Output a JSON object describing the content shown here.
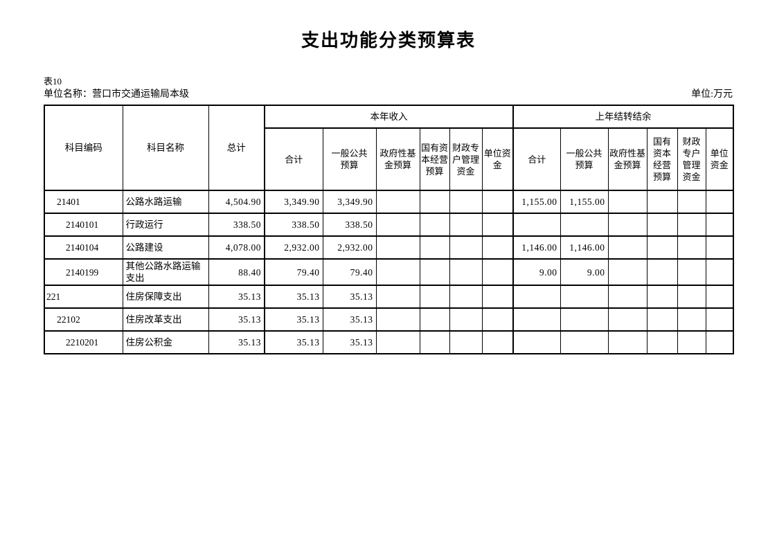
{
  "page": {
    "title": "支出功能分类预算表",
    "table_number": "表10",
    "unit_name": "单位名称：营口市交通运输局本级",
    "unit_of_measure": "单位:万元"
  },
  "table": {
    "header": {
      "subject_code": "科目编码",
      "subject_name": "科目名称",
      "grand_total": "总计",
      "groups": [
        {
          "label": "本年收入",
          "columns": [
            "合计",
            "一般公共预算",
            "政府性基金预算",
            "国有资本经营预算",
            "财政专户管理资金",
            "单位资金"
          ]
        },
        {
          "label": "上年结转结余",
          "columns": [
            "合计",
            "一般公共预算",
            "政府性基金预算",
            "国有资本经营预算",
            "财政专户管理资金",
            "单位资金"
          ]
        }
      ]
    },
    "rows": [
      {
        "code": "21401",
        "level": 2,
        "name": "公路水路运输",
        "total": "4,504.90",
        "current_year": [
          "3,349.90",
          "3,349.90",
          "",
          "",
          "",
          ""
        ],
        "carryover": [
          "1,155.00",
          "1,155.00",
          "",
          "",
          "",
          ""
        ]
      },
      {
        "code": "2140101",
        "level": 3,
        "name": "行政运行",
        "total": "338.50",
        "current_year": [
          "338.50",
          "338.50",
          "",
          "",
          "",
          ""
        ],
        "carryover": [
          "",
          "",
          "",
          "",
          "",
          ""
        ]
      },
      {
        "code": "2140104",
        "level": 3,
        "name": "公路建设",
        "total": "4,078.00",
        "current_year": [
          "2,932.00",
          "2,932.00",
          "",
          "",
          "",
          ""
        ],
        "carryover": [
          "1,146.00",
          "1,146.00",
          "",
          "",
          "",
          ""
        ]
      },
      {
        "code": "2140199",
        "level": 3,
        "name": "其他公路水路运输支出",
        "total": "88.40",
        "current_year": [
          "79.40",
          "79.40",
          "",
          "",
          "",
          ""
        ],
        "carryover": [
          "9.00",
          "9.00",
          "",
          "",
          "",
          ""
        ]
      },
      {
        "code": "221",
        "level": 1,
        "name": "住房保障支出",
        "total": "35.13",
        "current_year": [
          "35.13",
          "35.13",
          "",
          "",
          "",
          ""
        ],
        "carryover": [
          "",
          "",
          "",
          "",
          "",
          ""
        ]
      },
      {
        "code": "22102",
        "level": 2,
        "name": "住房改革支出",
        "total": "35.13",
        "current_year": [
          "35.13",
          "35.13",
          "",
          "",
          "",
          ""
        ],
        "carryover": [
          "",
          "",
          "",
          "",
          "",
          ""
        ]
      },
      {
        "code": "2210201",
        "level": 3,
        "name": "住房公积金",
        "total": "35.13",
        "current_year": [
          "35.13",
          "35.13",
          "",
          "",
          "",
          ""
        ],
        "carryover": [
          "",
          "",
          "",
          "",
          "",
          ""
        ]
      }
    ]
  }
}
